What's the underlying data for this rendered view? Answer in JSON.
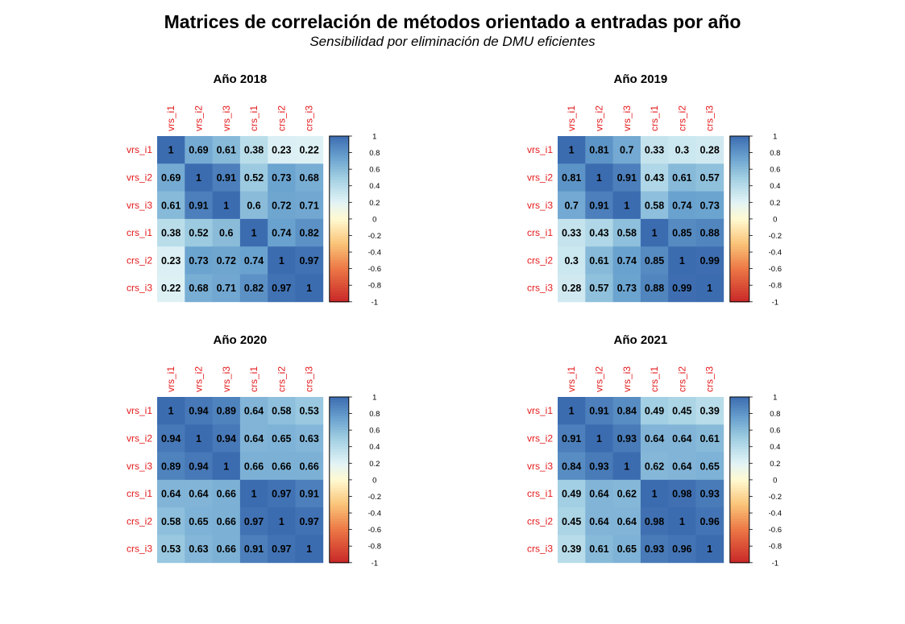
{
  "title": "Matrices de correlación de métodos orientado a entradas por año",
  "subtitle": "Sensibilidad por eliminación de DMU eficientes",
  "colors": {
    "label": "#e31a1c",
    "negative": "#c0392b",
    "neutral": "#ffffff",
    "positive": "#3a6fb3"
  },
  "chart_data": [
    {
      "type": "heatmap",
      "title": "Año 2018",
      "labels": [
        "vrs_i1",
        "vrs_i2",
        "vrs_i3",
        "crs_i1",
        "crs_i2",
        "crs_i3"
      ],
      "matrix": [
        [
          1,
          0.69,
          0.61,
          0.38,
          0.23,
          0.22
        ],
        [
          0.69,
          1,
          0.91,
          0.52,
          0.73,
          0.68
        ],
        [
          0.61,
          0.91,
          1,
          0.6,
          0.72,
          0.71
        ],
        [
          0.38,
          0.52,
          0.6,
          1,
          0.74,
          0.82
        ],
        [
          0.23,
          0.73,
          0.72,
          0.74,
          1,
          0.97
        ],
        [
          0.22,
          0.68,
          0.71,
          0.82,
          0.97,
          1
        ]
      ],
      "color_range": [
        -1,
        1
      ],
      "colorbar_ticks": [
        "1",
        "0.8",
        "0.6",
        "0.4",
        "0.2",
        "0",
        "-0.2",
        "-0.4",
        "-0.6",
        "-0.8",
        "-1"
      ]
    },
    {
      "type": "heatmap",
      "title": "Año 2019",
      "labels": [
        "vrs_i1",
        "vrs_i2",
        "vrs_i3",
        "crs_i1",
        "crs_i2",
        "crs_i3"
      ],
      "matrix": [
        [
          1,
          0.81,
          0.7,
          0.33,
          0.3,
          0.28
        ],
        [
          0.81,
          1,
          0.91,
          0.43,
          0.61,
          0.57
        ],
        [
          0.7,
          0.91,
          1,
          0.58,
          0.74,
          0.73
        ],
        [
          0.33,
          0.43,
          0.58,
          1,
          0.85,
          0.88
        ],
        [
          0.3,
          0.61,
          0.74,
          0.85,
          1,
          0.99
        ],
        [
          0.28,
          0.57,
          0.73,
          0.88,
          0.99,
          1
        ]
      ],
      "color_range": [
        -1,
        1
      ],
      "colorbar_ticks": [
        "1",
        "0.8",
        "0.6",
        "0.4",
        "0.2",
        "0",
        "-0.2",
        "-0.4",
        "-0.6",
        "-0.8",
        "-1"
      ]
    },
    {
      "type": "heatmap",
      "title": "Año 2020",
      "labels": [
        "vrs_i1",
        "vrs_i2",
        "vrs_i3",
        "crs_i1",
        "crs_i2",
        "crs_i3"
      ],
      "matrix": [
        [
          1,
          0.94,
          0.89,
          0.64,
          0.58,
          0.53
        ],
        [
          0.94,
          1,
          0.94,
          0.64,
          0.65,
          0.63
        ],
        [
          0.89,
          0.94,
          1,
          0.66,
          0.66,
          0.66
        ],
        [
          0.64,
          0.64,
          0.66,
          1,
          0.97,
          0.91
        ],
        [
          0.58,
          0.65,
          0.66,
          0.97,
          1,
          0.97
        ],
        [
          0.53,
          0.63,
          0.66,
          0.91,
          0.97,
          1
        ]
      ],
      "color_range": [
        -1,
        1
      ],
      "colorbar_ticks": [
        "1",
        "0.8",
        "0.6",
        "0.4",
        "0.2",
        "0",
        "-0.2",
        "-0.4",
        "-0.6",
        "-0.8",
        "-1"
      ]
    },
    {
      "type": "heatmap",
      "title": "Año 2021",
      "labels": [
        "vrs_i1",
        "vrs_i2",
        "vrs_i3",
        "crs_i1",
        "crs_i2",
        "crs_i3"
      ],
      "matrix": [
        [
          1,
          0.91,
          0.84,
          0.49,
          0.45,
          0.39
        ],
        [
          0.91,
          1,
          0.93,
          0.64,
          0.64,
          0.61
        ],
        [
          0.84,
          0.93,
          1,
          0.62,
          0.64,
          0.65
        ],
        [
          0.49,
          0.64,
          0.62,
          1,
          0.98,
          0.93
        ],
        [
          0.45,
          0.64,
          0.64,
          0.98,
          1,
          0.96
        ],
        [
          0.39,
          0.61,
          0.65,
          0.93,
          0.96,
          1
        ]
      ],
      "color_range": [
        -1,
        1
      ],
      "colorbar_ticks": [
        "1",
        "0.8",
        "0.6",
        "0.4",
        "0.2",
        "0",
        "-0.2",
        "-0.4",
        "-0.6",
        "-0.8",
        "-1"
      ]
    }
  ]
}
